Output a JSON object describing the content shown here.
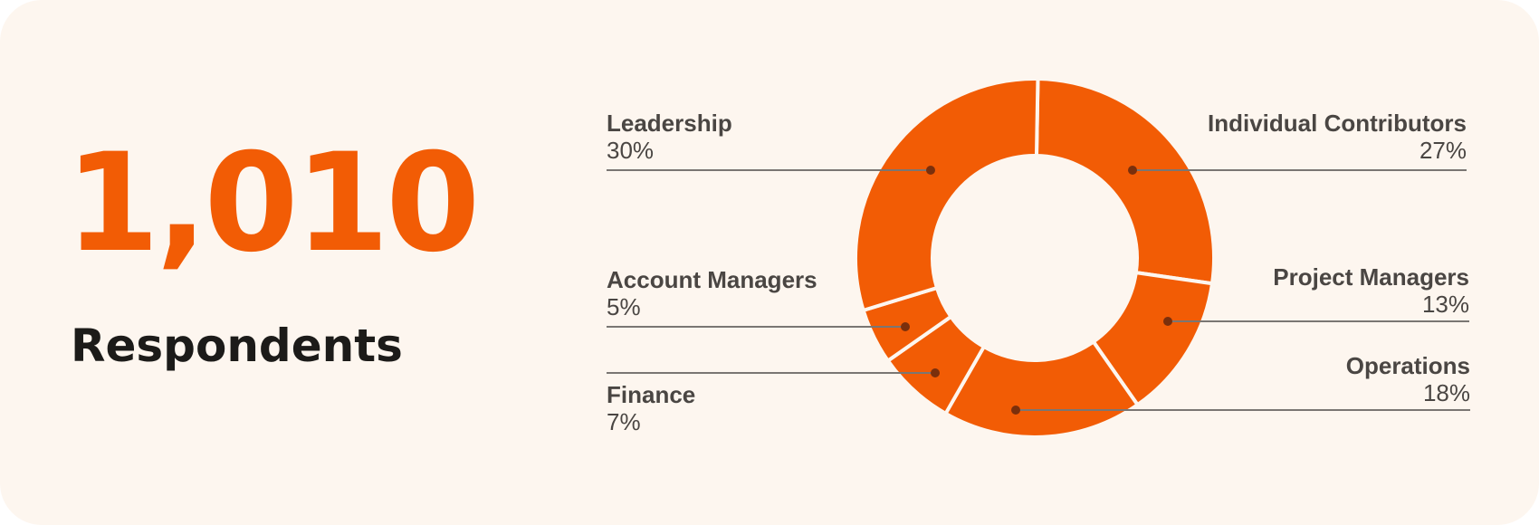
{
  "headline": {
    "value": "1,010",
    "label": "Respondents"
  },
  "colors": {
    "accent": "#f25c05",
    "background": "#fdf6ef",
    "text": "#4a4643",
    "leader": "#7a7673",
    "dot": "#7a2f0c"
  },
  "chart_data": {
    "type": "pie",
    "donut": true,
    "title": "",
    "categories": [
      "Individual Contributors",
      "Project Managers",
      "Operations",
      "Finance",
      "Account Managers",
      "Leadership"
    ],
    "values": [
      27,
      13,
      18,
      7,
      5,
      30
    ],
    "labels": [
      "27%",
      "13%",
      "18%",
      "7%",
      "5%",
      "30%"
    ],
    "legend": "none"
  }
}
